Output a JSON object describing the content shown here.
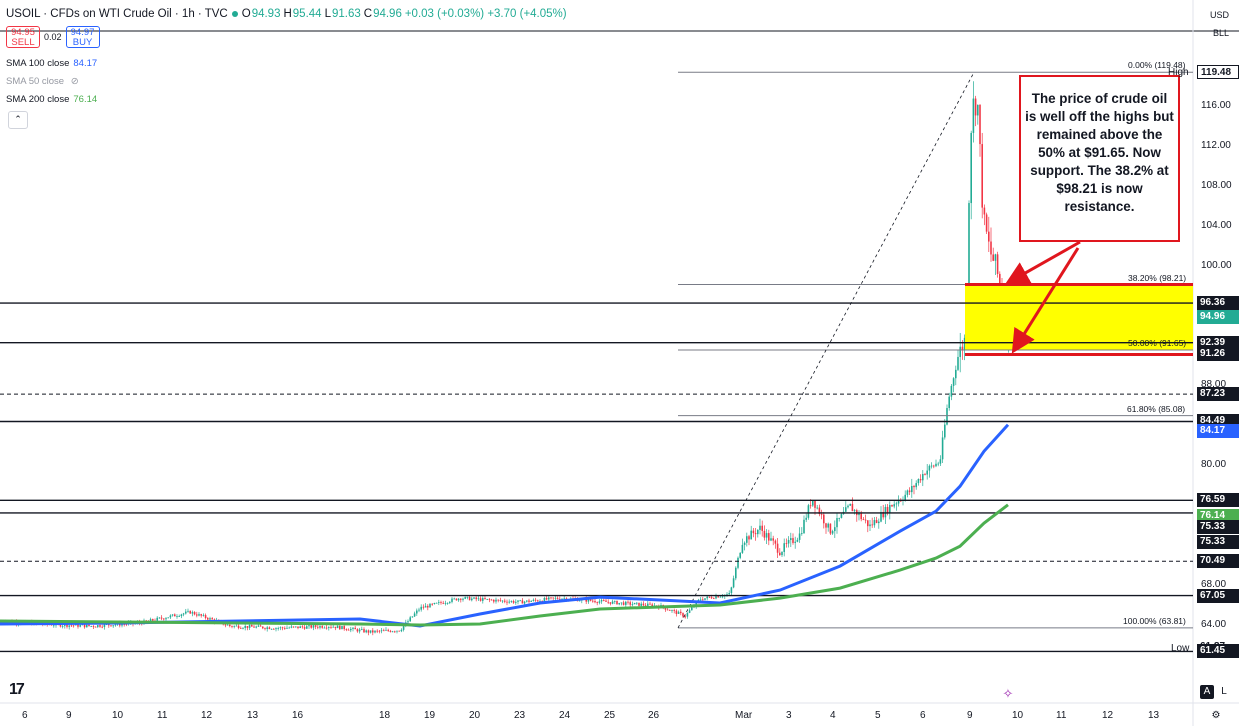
{
  "header": {
    "symbol": "USOIL · CFDs on WTI Crude Oil · 1h · TVC",
    "open_label": "O",
    "open": "94.93",
    "high_label": "H",
    "high": "95.44",
    "low_label": "L",
    "low": "91.63",
    "close_label": "C",
    "close": "94.96",
    "change": "+0.03 (+0.03%) +3.70 (+4.05%)"
  },
  "trade": {
    "sell_price": "94.95",
    "sell_label": "SELL",
    "spread": "0.02",
    "buy_price": "94.97",
    "buy_label": "BUY"
  },
  "indicators": [
    {
      "label": "SMA 100 close",
      "value": "84.17",
      "color": "#2962ff"
    },
    {
      "label": "SMA 50 close",
      "value": "",
      "color": "#9598a1"
    },
    {
      "label": "SMA 200 close",
      "value": "76.14",
      "color": "#4caf50"
    }
  ],
  "currency": "USD",
  "scale_mode": "BLL",
  "note_text": "The price of crude oil is well off the highs but remained above the 50% at $91.65.  Now support. The 38.2% at $98.21 is now resistance.",
  "fib_levels": [
    {
      "label": "0.00% (119.48)",
      "price": 119.48
    },
    {
      "label": "38.20% (98.21)",
      "price": 98.21
    },
    {
      "label": "50.00% (91.65)",
      "price": 91.65
    },
    {
      "label": "61.80% (85.08)",
      "price": 85.08
    },
    {
      "label": "100.00% (63.81)",
      "price": 63.81
    }
  ],
  "high_label": "High",
  "low_label": "Low",
  "y_axis_ticks": [
    "116.00",
    "112.00",
    "108.00",
    "104.00",
    "100.00",
    "88.00",
    "80.00",
    "68.00",
    "64.00"
  ],
  "price_tags": [
    {
      "text": "119.48",
      "price": 119.48,
      "bg": "#ffffff",
      "fg": "#131722",
      "border": "#131722"
    },
    {
      "text": "96.36",
      "price": 96.36,
      "bg": "#131722",
      "fg": "#ffffff"
    },
    {
      "text": "94.96",
      "price": 94.96,
      "bg": "#22ab94",
      "fg": "#ffffff"
    },
    {
      "text": "92.39",
      "price": 92.39,
      "bg": "#131722",
      "fg": "#ffffff"
    },
    {
      "text": "91.26",
      "price": 91.26,
      "bg": "#131722",
      "fg": "#ffffff"
    },
    {
      "text": "87.23",
      "price": 87.23,
      "bg": "#131722",
      "fg": "#ffffff"
    },
    {
      "text": "84.49",
      "price": 84.49,
      "bg": "#131722",
      "fg": "#ffffff"
    },
    {
      "text": "84.17",
      "price": 83.5,
      "bg": "#2962ff",
      "fg": "#ffffff"
    },
    {
      "text": "76.59",
      "price": 76.59,
      "bg": "#131722",
      "fg": "#ffffff"
    },
    {
      "text": "76.14",
      "price": 75.0,
      "bg": "#4caf50",
      "fg": "#ffffff"
    },
    {
      "text": "75.33",
      "price": 73.9,
      "bg": "#131722",
      "fg": "#ffffff"
    },
    {
      "text": "75.33",
      "price": 72.4,
      "bg": "#131722",
      "fg": "#ffffff"
    },
    {
      "text": "70.49",
      "price": 70.49,
      "bg": "#131722",
      "fg": "#ffffff"
    },
    {
      "text": "67.05",
      "price": 67.05,
      "bg": "#131722",
      "fg": "#ffffff"
    },
    {
      "text": "61.87",
      "price": 61.87,
      "bg": "#ffffff",
      "fg": "#131722"
    },
    {
      "text": "61.45",
      "price": 61.45,
      "bg": "#131722",
      "fg": "#ffffff"
    }
  ],
  "h_lines": [
    {
      "price": 96.36,
      "style": "solid"
    },
    {
      "price": 92.39,
      "style": "solid"
    },
    {
      "price": 87.23,
      "style": "dashed"
    },
    {
      "price": 84.49,
      "style": "solid"
    },
    {
      "price": 76.59,
      "style": "solid"
    },
    {
      "price": 75.33,
      "style": "solid"
    },
    {
      "price": 70.49,
      "style": "dashed"
    },
    {
      "price": 67.05,
      "style": "solid"
    },
    {
      "price": 61.45,
      "style": "solid"
    }
  ],
  "x_axis_ticks": [
    "6",
    "9",
    "10",
    "11",
    "12",
    "13",
    "16",
    "18",
    "19",
    "20",
    "23",
    "24",
    "25",
    "26",
    "Mar",
    "3",
    "4",
    "5",
    "6",
    "9",
    "10",
    "11",
    "12",
    "13"
  ],
  "chart_data": {
    "type": "line",
    "title": "USOIL · CFDs on WTI Crude Oil · 1h · TVC",
    "xlabel": "",
    "ylabel": "",
    "ylim": [
      60.0,
      122.0
    ],
    "series": [
      {
        "name": "SMA 100 close",
        "color": "#2962ff",
        "x": [
          0,
          0.1,
          0.2,
          0.3,
          0.35,
          0.4,
          0.45,
          0.5,
          0.55,
          0.6,
          0.65,
          0.7,
          0.75,
          0.78,
          0.8,
          0.82,
          0.84
        ],
        "y": [
          64.2,
          64.3,
          64.5,
          64.7,
          64.0,
          65.2,
          66.3,
          66.9,
          66.6,
          66.3,
          67.6,
          70.0,
          73.5,
          75.5,
          78.0,
          81.5,
          84.17
        ]
      },
      {
        "name": "SMA 200 close",
        "color": "#4caf50",
        "x": [
          0,
          0.1,
          0.2,
          0.3,
          0.35,
          0.4,
          0.45,
          0.5,
          0.55,
          0.6,
          0.65,
          0.7,
          0.75,
          0.78,
          0.8,
          0.82,
          0.84
        ],
        "y": [
          64.5,
          64.4,
          64.3,
          64.2,
          64.1,
          64.2,
          65.0,
          65.7,
          65.9,
          66.1,
          66.8,
          67.8,
          69.6,
          70.8,
          72.0,
          74.3,
          76.14
        ]
      }
    ]
  },
  "colors": {
    "bull": "#22ab94",
    "bear": "#f23645",
    "zone": "#ffff00",
    "accent_red": "#e0161e"
  }
}
